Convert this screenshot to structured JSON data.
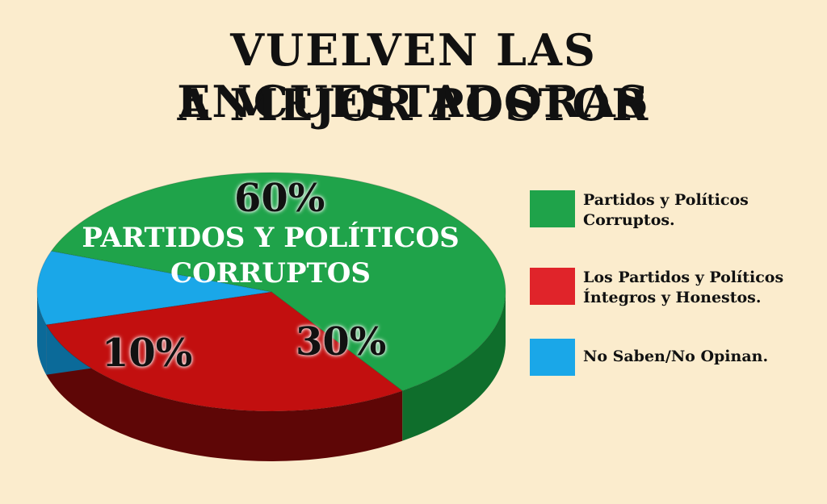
{
  "title_line1": "VUELVEN LAS ENCUESTADORAS",
  "title_line2": "A MEJOR POSTOR",
  "chart_data": {
    "type": "pie",
    "title": "VUELVEN LAS ENCUESTADORAS A MEJOR POSTOR",
    "slices": [
      {
        "label": "Partidos y Políticos\nCorruptos.",
        "value": 60,
        "value_label": "60%",
        "color": "#1fa34a",
        "side_color": "#0f6e2c"
      },
      {
        "label": "Los Partidos y Políticos\nÍntegros y Honestos.",
        "value": 30,
        "value_label": "30%",
        "color": "#c20f0f",
        "side_color": "#5e0606"
      },
      {
        "label": "No Saben/No Opinan.",
        "value": 10,
        "value_label": "10%",
        "color": "#1aa7e8",
        "side_color": "#0b6a99"
      }
    ],
    "inside_label": "PARTIDOS Y POLÍTICOS\nCORRUPTOS",
    "legend_position": "right"
  }
}
